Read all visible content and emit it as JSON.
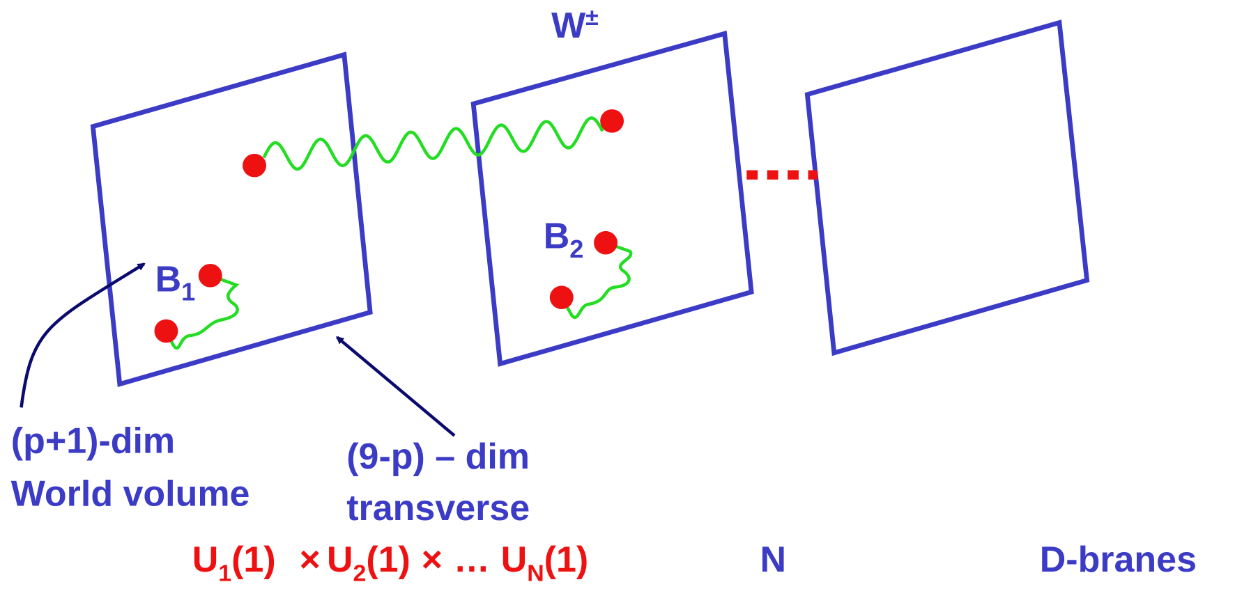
{
  "labels": {
    "w_boson": {
      "base": "W",
      "sup": "±"
    },
    "b1": {
      "base": "B",
      "sub": "1"
    },
    "b2": {
      "base": "B",
      "sub": "2"
    },
    "world_volume": [
      "(p+1)-dim",
      "World volume"
    ],
    "transverse": [
      "(9-p) – dim",
      "transverse"
    ]
  },
  "formula": {
    "terms": [
      {
        "base": "U",
        "sub": "1",
        "arg": "(1)"
      },
      {
        "base": "U",
        "sub": "2",
        "arg": "(1)"
      },
      {
        "base": "U",
        "sub": "N",
        "arg": "(1)"
      }
    ],
    "times": "×",
    "ellipsis": "…"
  },
  "count": "N",
  "objects": "D-branes"
}
